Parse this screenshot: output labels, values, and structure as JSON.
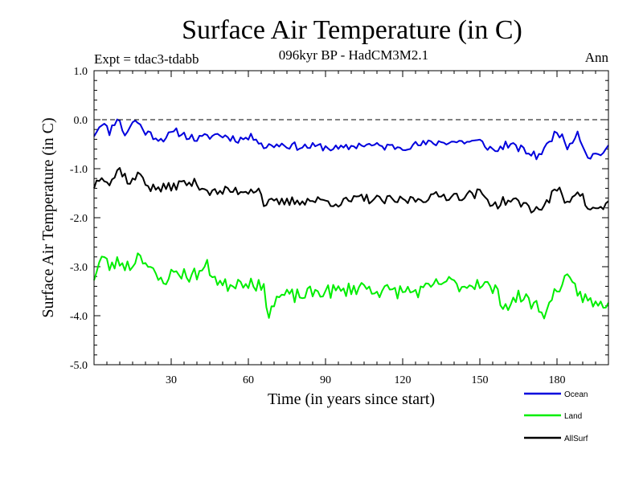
{
  "chart_data": {
    "type": "line",
    "title": "Surface Air Temperature (in C)",
    "subtitle": "096kyr BP - HadCM3M2.1",
    "left_label": "Expt = tdac3-tdabb",
    "right_label": "Ann",
    "xlabel": "Time (in years since start)",
    "ylabel": "Surface Air Temperature (in C)",
    "xlim": [
      0,
      200
    ],
    "ylim": [
      -5.0,
      1.0
    ],
    "xticks": [
      30,
      60,
      90,
      120,
      150,
      180
    ],
    "xtick_labels": [
      "30",
      "60",
      "90",
      "120",
      "150",
      "180"
    ],
    "yticks": [
      1.0,
      0.0,
      -1.0,
      -2.0,
      -3.0,
      -4.0,
      -5.0
    ],
    "ytick_labels": [
      "1.0",
      "0.0",
      "-1.0",
      "-2.0",
      "-3.0",
      "-4.0",
      "-5.0"
    ],
    "reference_line": 0.0,
    "series": [
      {
        "name": "Ocean",
        "color": "#0000dd",
        "key_points": [
          [
            0,
            -0.3
          ],
          [
            3,
            -0.05
          ],
          [
            6,
            -0.25
          ],
          [
            9,
            0.05
          ],
          [
            12,
            -0.3
          ],
          [
            16,
            0.0
          ],
          [
            20,
            -0.25
          ],
          [
            26,
            -0.4
          ],
          [
            32,
            -0.25
          ],
          [
            40,
            -0.4
          ],
          [
            48,
            -0.3
          ],
          [
            56,
            -0.4
          ],
          [
            63,
            -0.35
          ],
          [
            66,
            -0.55
          ],
          [
            72,
            -0.5
          ],
          [
            80,
            -0.55
          ],
          [
            88,
            -0.55
          ],
          [
            96,
            -0.6
          ],
          [
            104,
            -0.5
          ],
          [
            112,
            -0.55
          ],
          [
            120,
            -0.55
          ],
          [
            128,
            -0.5
          ],
          [
            136,
            -0.45
          ],
          [
            144,
            -0.45
          ],
          [
            150,
            -0.45
          ],
          [
            156,
            -0.65
          ],
          [
            160,
            -0.5
          ],
          [
            166,
            -0.6
          ],
          [
            172,
            -0.75
          ],
          [
            176,
            -0.55
          ],
          [
            180,
            -0.2
          ],
          [
            184,
            -0.55
          ],
          [
            188,
            -0.25
          ],
          [
            192,
            -0.75
          ],
          [
            196,
            -0.7
          ],
          [
            200,
            -0.6
          ]
        ],
        "noise_amplitude": 0.08,
        "noise_seed": 11
      },
      {
        "name": "Land",
        "color": "#00ee00",
        "key_points": [
          [
            0,
            -3.2
          ],
          [
            3,
            -2.8
          ],
          [
            6,
            -3.0
          ],
          [
            10,
            -2.9
          ],
          [
            14,
            -3.0
          ],
          [
            18,
            -2.7
          ],
          [
            22,
            -3.1
          ],
          [
            26,
            -3.3
          ],
          [
            32,
            -3.1
          ],
          [
            38,
            -3.2
          ],
          [
            44,
            -3.0
          ],
          [
            50,
            -3.4
          ],
          [
            56,
            -3.3
          ],
          [
            62,
            -3.3
          ],
          [
            66,
            -3.5
          ],
          [
            68,
            -3.9
          ],
          [
            72,
            -3.6
          ],
          [
            80,
            -3.6
          ],
          [
            88,
            -3.5
          ],
          [
            96,
            -3.5
          ],
          [
            104,
            -3.4
          ],
          [
            112,
            -3.5
          ],
          [
            120,
            -3.5
          ],
          [
            128,
            -3.5
          ],
          [
            136,
            -3.3
          ],
          [
            144,
            -3.4
          ],
          [
            150,
            -3.3
          ],
          [
            156,
            -3.5
          ],
          [
            160,
            -3.8
          ],
          [
            166,
            -3.6
          ],
          [
            172,
            -3.8
          ],
          [
            176,
            -3.95
          ],
          [
            180,
            -3.4
          ],
          [
            184,
            -3.3
          ],
          [
            188,
            -3.5
          ],
          [
            192,
            -3.7
          ],
          [
            196,
            -3.8
          ],
          [
            200,
            -3.7
          ]
        ],
        "noise_amplitude": 0.15,
        "noise_seed": 23
      },
      {
        "name": "AllSurf",
        "color": "#000000",
        "key_points": [
          [
            0,
            -1.35
          ],
          [
            3,
            -1.1
          ],
          [
            6,
            -1.3
          ],
          [
            10,
            -1.0
          ],
          [
            14,
            -1.3
          ],
          [
            18,
            -1.1
          ],
          [
            22,
            -1.4
          ],
          [
            28,
            -1.4
          ],
          [
            34,
            -1.3
          ],
          [
            40,
            -1.3
          ],
          [
            46,
            -1.5
          ],
          [
            52,
            -1.45
          ],
          [
            58,
            -1.45
          ],
          [
            64,
            -1.4
          ],
          [
            66,
            -1.7
          ],
          [
            72,
            -1.7
          ],
          [
            80,
            -1.65
          ],
          [
            88,
            -1.65
          ],
          [
            96,
            -1.7
          ],
          [
            104,
            -1.6
          ],
          [
            112,
            -1.65
          ],
          [
            120,
            -1.65
          ],
          [
            128,
            -1.6
          ],
          [
            136,
            -1.55
          ],
          [
            144,
            -1.55
          ],
          [
            150,
            -1.5
          ],
          [
            156,
            -1.75
          ],
          [
            160,
            -1.65
          ],
          [
            166,
            -1.7
          ],
          [
            172,
            -1.85
          ],
          [
            176,
            -1.7
          ],
          [
            180,
            -1.4
          ],
          [
            184,
            -1.7
          ],
          [
            188,
            -1.4
          ],
          [
            192,
            -1.8
          ],
          [
            196,
            -1.85
          ],
          [
            200,
            -1.7
          ]
        ],
        "noise_amplitude": 0.1,
        "noise_seed": 37
      }
    ],
    "legend_order": [
      "Ocean",
      "Land",
      "AllSurf"
    ]
  }
}
